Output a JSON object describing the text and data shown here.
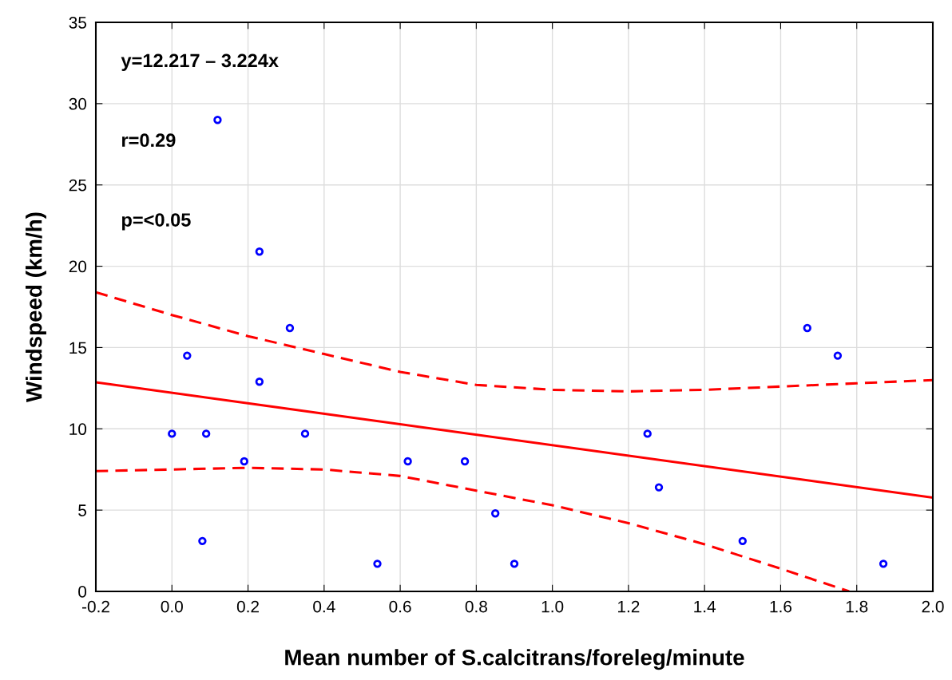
{
  "chart_data": {
    "type": "scatter",
    "xlabel": "Mean number of S.calcitrans/foreleg/minute",
    "ylabel": "Windspeed (km/h)",
    "xlim": [
      -0.2,
      2.0
    ],
    "ylim": [
      0,
      35
    ],
    "xticks": [
      {
        "value": -0.2,
        "label": "-0.2"
      },
      {
        "value": 0,
        "label": "0.0"
      },
      {
        "value": 0.2,
        "label": "0.2"
      },
      {
        "value": 0.4,
        "label": "0.4"
      },
      {
        "value": 0.6,
        "label": "0.6"
      },
      {
        "value": 0.8,
        "label": "0.8"
      },
      {
        "value": 1.0,
        "label": "1.0"
      },
      {
        "value": 1.2,
        "label": "1.2"
      },
      {
        "value": 1.4,
        "label": "1.4"
      },
      {
        "value": 1.6,
        "label": "1.6"
      },
      {
        "value": 1.8,
        "label": "1.8"
      },
      {
        "value": 2.0,
        "label": "2.0"
      }
    ],
    "yticks": [
      0,
      5,
      10,
      15,
      20,
      25,
      30,
      35
    ],
    "grid": true,
    "annotations": [
      "y=12.217 – 3.224x",
      "r=0.29",
      "p=<0.05"
    ],
    "series": [
      {
        "color": "#0000ff",
        "marker": "circle",
        "x": [
          0.0,
          0.04,
          0.09,
          0.08,
          0.12,
          0.19,
          0.23,
          0.23,
          0.31,
          0.35,
          0.54,
          0.62,
          0.77,
          0.85,
          0.9,
          1.25,
          1.28,
          1.5,
          1.67,
          1.75,
          1.87
        ],
        "values": [
          9.7,
          14.5,
          9.7,
          3.1,
          29.0,
          8.0,
          20.9,
          12.9,
          16.2,
          9.7,
          1.7,
          8.0,
          8.0,
          4.8,
          1.7,
          9.7,
          6.4,
          3.1,
          16.2,
          14.5,
          1.7
        ]
      },
      {
        "type": "line",
        "color": "#ff0000",
        "line_style": "solid",
        "x": [
          -0.2,
          2.0
        ],
        "values": [
          12.86,
          5.77
        ]
      },
      {
        "type": "line",
        "color": "#ff0000",
        "line_style": "dashed",
        "x": [
          -0.2,
          0.0,
          0.2,
          0.4,
          0.6,
          0.8,
          1.0,
          1.2,
          1.4,
          1.6,
          1.8,
          2.0
        ],
        "values": [
          18.4,
          17.0,
          15.7,
          14.6,
          13.5,
          12.7,
          12.4,
          12.3,
          12.4,
          12.6,
          12.8,
          13.0
        ]
      },
      {
        "type": "line",
        "color": "#ff0000",
        "line_style": "dashed",
        "x": [
          -0.2,
          0.0,
          0.2,
          0.4,
          0.6,
          0.8,
          1.0,
          1.2,
          1.4,
          1.6,
          1.78
        ],
        "values": [
          7.4,
          7.5,
          7.6,
          7.5,
          7.1,
          6.2,
          5.3,
          4.2,
          2.9,
          1.4,
          0
        ]
      }
    ]
  }
}
